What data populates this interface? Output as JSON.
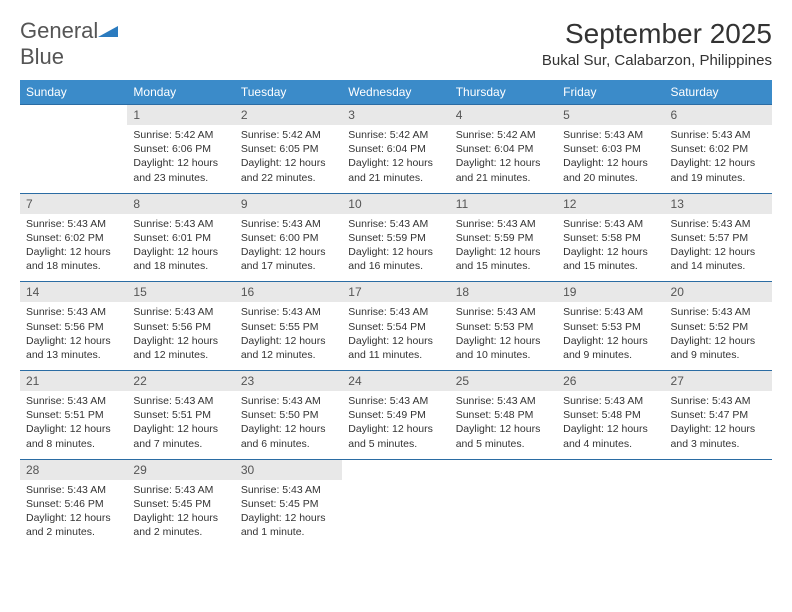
{
  "logo": {
    "text1": "General",
    "text2": "Blue"
  },
  "title": "September 2025",
  "location": "Bukal Sur, Calabarzon, Philippines",
  "header_bg": "#3b8bc9",
  "header_text": "#ffffff",
  "daynum_bg": "#e8e8e8",
  "border_color": "#2b6ca3",
  "text_color": "#333333",
  "fontsize_title": 28,
  "fontsize_location": 15,
  "fontsize_header": 12,
  "fontsize_daynum": 12,
  "fontsize_data": 10.5,
  "weekdays": [
    "Sunday",
    "Monday",
    "Tuesday",
    "Wednesday",
    "Thursday",
    "Friday",
    "Saturday"
  ],
  "weeks": [
    [
      {
        "n": "",
        "sr": "",
        "ss": "",
        "dl": ""
      },
      {
        "n": "1",
        "sr": "Sunrise: 5:42 AM",
        "ss": "Sunset: 6:06 PM",
        "dl": "Daylight: 12 hours and 23 minutes."
      },
      {
        "n": "2",
        "sr": "Sunrise: 5:42 AM",
        "ss": "Sunset: 6:05 PM",
        "dl": "Daylight: 12 hours and 22 minutes."
      },
      {
        "n": "3",
        "sr": "Sunrise: 5:42 AM",
        "ss": "Sunset: 6:04 PM",
        "dl": "Daylight: 12 hours and 21 minutes."
      },
      {
        "n": "4",
        "sr": "Sunrise: 5:42 AM",
        "ss": "Sunset: 6:04 PM",
        "dl": "Daylight: 12 hours and 21 minutes."
      },
      {
        "n": "5",
        "sr": "Sunrise: 5:43 AM",
        "ss": "Sunset: 6:03 PM",
        "dl": "Daylight: 12 hours and 20 minutes."
      },
      {
        "n": "6",
        "sr": "Sunrise: 5:43 AM",
        "ss": "Sunset: 6:02 PM",
        "dl": "Daylight: 12 hours and 19 minutes."
      }
    ],
    [
      {
        "n": "7",
        "sr": "Sunrise: 5:43 AM",
        "ss": "Sunset: 6:02 PM",
        "dl": "Daylight: 12 hours and 18 minutes."
      },
      {
        "n": "8",
        "sr": "Sunrise: 5:43 AM",
        "ss": "Sunset: 6:01 PM",
        "dl": "Daylight: 12 hours and 18 minutes."
      },
      {
        "n": "9",
        "sr": "Sunrise: 5:43 AM",
        "ss": "Sunset: 6:00 PM",
        "dl": "Daylight: 12 hours and 17 minutes."
      },
      {
        "n": "10",
        "sr": "Sunrise: 5:43 AM",
        "ss": "Sunset: 5:59 PM",
        "dl": "Daylight: 12 hours and 16 minutes."
      },
      {
        "n": "11",
        "sr": "Sunrise: 5:43 AM",
        "ss": "Sunset: 5:59 PM",
        "dl": "Daylight: 12 hours and 15 minutes."
      },
      {
        "n": "12",
        "sr": "Sunrise: 5:43 AM",
        "ss": "Sunset: 5:58 PM",
        "dl": "Daylight: 12 hours and 15 minutes."
      },
      {
        "n": "13",
        "sr": "Sunrise: 5:43 AM",
        "ss": "Sunset: 5:57 PM",
        "dl": "Daylight: 12 hours and 14 minutes."
      }
    ],
    [
      {
        "n": "14",
        "sr": "Sunrise: 5:43 AM",
        "ss": "Sunset: 5:56 PM",
        "dl": "Daylight: 12 hours and 13 minutes."
      },
      {
        "n": "15",
        "sr": "Sunrise: 5:43 AM",
        "ss": "Sunset: 5:56 PM",
        "dl": "Daylight: 12 hours and 12 minutes."
      },
      {
        "n": "16",
        "sr": "Sunrise: 5:43 AM",
        "ss": "Sunset: 5:55 PM",
        "dl": "Daylight: 12 hours and 12 minutes."
      },
      {
        "n": "17",
        "sr": "Sunrise: 5:43 AM",
        "ss": "Sunset: 5:54 PM",
        "dl": "Daylight: 12 hours and 11 minutes."
      },
      {
        "n": "18",
        "sr": "Sunrise: 5:43 AM",
        "ss": "Sunset: 5:53 PM",
        "dl": "Daylight: 12 hours and 10 minutes."
      },
      {
        "n": "19",
        "sr": "Sunrise: 5:43 AM",
        "ss": "Sunset: 5:53 PM",
        "dl": "Daylight: 12 hours and 9 minutes."
      },
      {
        "n": "20",
        "sr": "Sunrise: 5:43 AM",
        "ss": "Sunset: 5:52 PM",
        "dl": "Daylight: 12 hours and 9 minutes."
      }
    ],
    [
      {
        "n": "21",
        "sr": "Sunrise: 5:43 AM",
        "ss": "Sunset: 5:51 PM",
        "dl": "Daylight: 12 hours and 8 minutes."
      },
      {
        "n": "22",
        "sr": "Sunrise: 5:43 AM",
        "ss": "Sunset: 5:51 PM",
        "dl": "Daylight: 12 hours and 7 minutes."
      },
      {
        "n": "23",
        "sr": "Sunrise: 5:43 AM",
        "ss": "Sunset: 5:50 PM",
        "dl": "Daylight: 12 hours and 6 minutes."
      },
      {
        "n": "24",
        "sr": "Sunrise: 5:43 AM",
        "ss": "Sunset: 5:49 PM",
        "dl": "Daylight: 12 hours and 5 minutes."
      },
      {
        "n": "25",
        "sr": "Sunrise: 5:43 AM",
        "ss": "Sunset: 5:48 PM",
        "dl": "Daylight: 12 hours and 5 minutes."
      },
      {
        "n": "26",
        "sr": "Sunrise: 5:43 AM",
        "ss": "Sunset: 5:48 PM",
        "dl": "Daylight: 12 hours and 4 minutes."
      },
      {
        "n": "27",
        "sr": "Sunrise: 5:43 AM",
        "ss": "Sunset: 5:47 PM",
        "dl": "Daylight: 12 hours and 3 minutes."
      }
    ],
    [
      {
        "n": "28",
        "sr": "Sunrise: 5:43 AM",
        "ss": "Sunset: 5:46 PM",
        "dl": "Daylight: 12 hours and 2 minutes."
      },
      {
        "n": "29",
        "sr": "Sunrise: 5:43 AM",
        "ss": "Sunset: 5:45 PM",
        "dl": "Daylight: 12 hours and 2 minutes."
      },
      {
        "n": "30",
        "sr": "Sunrise: 5:43 AM",
        "ss": "Sunset: 5:45 PM",
        "dl": "Daylight: 12 hours and 1 minute."
      },
      {
        "n": "",
        "sr": "",
        "ss": "",
        "dl": ""
      },
      {
        "n": "",
        "sr": "",
        "ss": "",
        "dl": ""
      },
      {
        "n": "",
        "sr": "",
        "ss": "",
        "dl": ""
      },
      {
        "n": "",
        "sr": "",
        "ss": "",
        "dl": ""
      }
    ]
  ]
}
